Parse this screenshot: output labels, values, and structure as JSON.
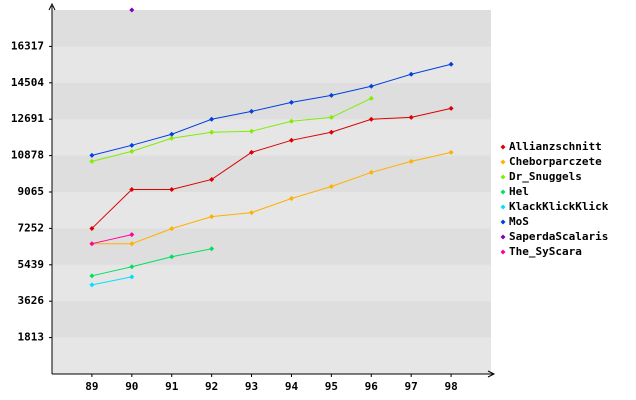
{
  "chart_data": {
    "type": "line",
    "x": [
      89,
      90,
      91,
      92,
      93,
      94,
      95,
      96,
      97,
      98
    ],
    "xlim": [
      88,
      99
    ],
    "xticks": [
      89,
      90,
      91,
      92,
      93,
      94,
      95,
      96,
      97,
      98
    ],
    "ylim": [
      0,
      18130
    ],
    "yticks": [
      1813,
      3626,
      5439,
      7252,
      9065,
      10878,
      12691,
      14504,
      16317
    ],
    "grid": true,
    "legend": "right",
    "series": [
      {
        "name": "Allianzschnitt",
        "color": "#dd0000",
        "values": [
          7250,
          9190,
          9190,
          9690,
          11040,
          11640,
          12040,
          12690,
          12780,
          13230
        ]
      },
      {
        "name": "Cheborparczete",
        "color": "#ffb000",
        "values": [
          6490,
          6490,
          7240,
          7840,
          8040,
          8740,
          9340,
          10040,
          10590,
          11040
        ]
      },
      {
        "name": "Dr_Snuggels",
        "color": "#80ee00",
        "values": [
          10590,
          11090,
          11740,
          12040,
          12090,
          12590,
          12780,
          13730,
          null,
          null
        ]
      },
      {
        "name": "Hel",
        "color": "#00e060",
        "values": [
          4890,
          5340,
          5840,
          6240,
          null,
          null,
          null,
          null,
          null,
          null
        ]
      },
      {
        "name": "KlackKlickKlick",
        "color": "#00e0ff",
        "values": [
          4440,
          4840,
          null,
          null,
          null,
          null,
          null,
          null,
          null,
          null
        ]
      },
      {
        "name": "MoS",
        "color": "#0040e0",
        "values": [
          10890,
          11390,
          11940,
          12690,
          13080,
          13530,
          13880,
          14330,
          14930,
          15430
        ]
      },
      {
        "name": "SaperdaScalaris",
        "color": "#8000c0",
        "values": [
          null,
          18130,
          null,
          null,
          null,
          null,
          null,
          null,
          null,
          null
        ]
      },
      {
        "name": "The_SyScara",
        "color": "#ff00a0",
        "values": [
          6490,
          6940,
          null,
          null,
          null,
          null,
          null,
          null,
          null,
          null
        ]
      }
    ]
  }
}
